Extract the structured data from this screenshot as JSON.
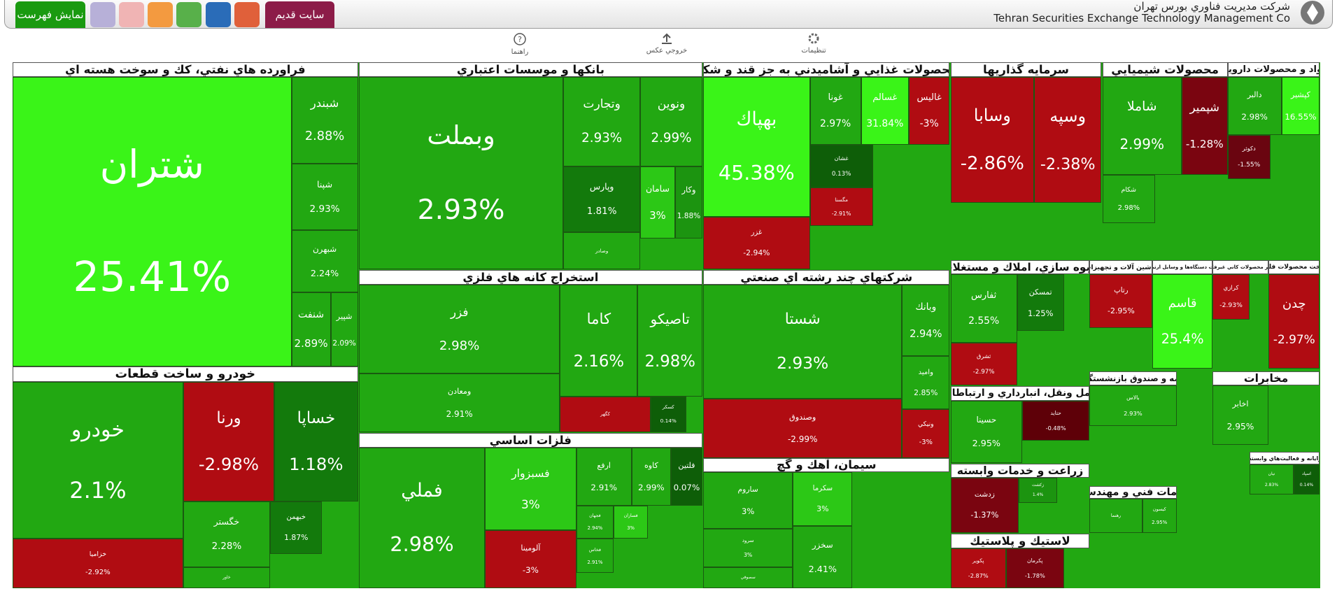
{
  "header": {
    "company_fa": "شركت مديريت فناوري بورس تهران",
    "company_en": "Tehran Securities Exchange Technology Management Co",
    "show_list": "نمايش فهرست",
    "old_site": "سايت قديم"
  },
  "toolbar": {
    "settings": "تنظيمات",
    "export": "خروجي عكس",
    "help": "راهنما"
  },
  "sectors": [
    {
      "title": "فراورده هاي نفتي، كك و سوخت هسته اي",
      "tiles": [
        {
          "name": "شتران",
          "change": "25.41%",
          "color": "#3af418"
        },
        {
          "name": "شبندر",
          "change": "2.88%",
          "color": "#22a812"
        },
        {
          "name": "شپنا",
          "change": "2.93%",
          "color": "#22a812"
        },
        {
          "name": "شبهرن",
          "change": "2.24%",
          "color": "#22a812"
        },
        {
          "name": "شنفت",
          "change": "2.89%",
          "color": "#22a812"
        },
        {
          "name": "شپير",
          "change": "2.09%",
          "color": "#22a812"
        }
      ]
    },
    {
      "title": "خودرو و ساخت قطعات",
      "tiles": [
        {
          "name": "خودرو",
          "change": "2.1%",
          "color": "#22a812"
        },
        {
          "name": "ورنا",
          "change": "-2.98%",
          "color": "#b00c12"
        },
        {
          "name": "خساپا",
          "change": "1.18%",
          "color": "#137a0c"
        },
        {
          "name": "خگستر",
          "change": "2.28%",
          "color": "#22a812"
        },
        {
          "name": "خبهمن",
          "change": "1.87%",
          "color": "#137a0c"
        },
        {
          "name": "خزاميا",
          "change": "-2.92%",
          "color": "#b00c12"
        },
        {
          "name": "خاور",
          "color": "#22a812"
        }
      ]
    },
    {
      "title": "بانكها و موسسات اعتباري",
      "tiles": [
        {
          "name": "وبملت",
          "change": "2.93%",
          "color": "#22a812"
        },
        {
          "name": "وتجارت",
          "change": "2.93%",
          "color": "#22a812"
        },
        {
          "name": "ونوين",
          "change": "2.99%",
          "color": "#22a812"
        },
        {
          "name": "وپارس",
          "change": "1.81%",
          "color": "#137a0c"
        },
        {
          "name": "وصادر",
          "color": "#22a812"
        },
        {
          "name": "سامان",
          "change": "3%",
          "color": "#2cc816"
        },
        {
          "name": "وكار",
          "change": "1.88%",
          "color": "#1c9410"
        }
      ]
    },
    {
      "title": "استخراج كانه هاي فلزي",
      "tiles": [
        {
          "name": "فزر",
          "change": "2.98%",
          "color": "#22a812"
        },
        {
          "name": "كاما",
          "change": "2.16%",
          "color": "#22a812"
        },
        {
          "name": "تاصيكو",
          "change": "2.98%",
          "color": "#22a812"
        },
        {
          "name": "ومعادن",
          "change": "2.91%",
          "color": "#22a812"
        },
        {
          "name": "كگهر",
          "color": "#b00c12"
        },
        {
          "name": "كسكر",
          "change": "0.14%",
          "color": "#0e5e08"
        }
      ]
    },
    {
      "title": "فلزات اساسي",
      "tiles": [
        {
          "name": "فملي",
          "change": "2.98%",
          "color": "#22a812"
        },
        {
          "name": "فسبزوار",
          "change": "3%",
          "color": "#2cc816"
        },
        {
          "name": "آلومينا",
          "change": "-3%",
          "color": "#b00c12"
        },
        {
          "name": "ارفع",
          "change": "2.91%",
          "color": "#22a812"
        },
        {
          "name": "كاوه",
          "change": "2.99%",
          "color": "#22a812"
        },
        {
          "name": "فلتين",
          "change": "0.07%",
          "color": "#0e5e08"
        },
        {
          "name": "فجهان",
          "change": "2.94%",
          "color": "#22a812"
        },
        {
          "name": "فسازان",
          "change": "3%",
          "color": "#2cc816"
        },
        {
          "name": "فخاس",
          "change": "2.91%",
          "color": "#22a812"
        }
      ]
    },
    {
      "title": "محصولات غذايي و آشاميدني به جز قند و شكر",
      "tiles": [
        {
          "name": "بهپاك",
          "change": "45.38%",
          "color": "#3af418"
        },
        {
          "name": "غزر",
          "change": "-2.94%",
          "color": "#b00c12"
        },
        {
          "name": "غونا",
          "change": "2.97%",
          "color": "#22a812"
        },
        {
          "name": "غسالم",
          "change": "31.84%",
          "color": "#3af418"
        },
        {
          "name": "غاليس",
          "change": "-3%",
          "color": "#b00c12"
        },
        {
          "name": "غشان",
          "change": "0.13%",
          "color": "#0e5e08"
        },
        {
          "name": "مگسنا",
          "change": "-2.91%",
          "color": "#b00c12"
        }
      ]
    },
    {
      "title": "شركتهاي چند رشته اي صنعتي",
      "tiles": [
        {
          "name": "شستا",
          "change": "2.93%",
          "color": "#22a812"
        },
        {
          "name": "وصندوق",
          "change": "-2.99%",
          "color": "#b00c12"
        },
        {
          "name": "وبانك",
          "change": "2.94%",
          "color": "#22a812"
        },
        {
          "name": "واميد",
          "change": "2.85%",
          "color": "#22a812"
        },
        {
          "name": "ونيكي",
          "change": "-3%",
          "color": "#b00c12"
        }
      ]
    },
    {
      "title": "سيمان، آهك و گچ",
      "tiles": [
        {
          "name": "ساروم",
          "change": "3%",
          "color": "#22a812"
        },
        {
          "name": "سكرما",
          "change": "3%",
          "color": "#2cc816"
        },
        {
          "name": "سرود",
          "change": "3%",
          "color": "#22a812"
        },
        {
          "name": "سخزر",
          "change": "2.41%",
          "color": "#22a812"
        },
        {
          "name": "سصوفي",
          "color": "#22a812"
        }
      ]
    },
    {
      "title": "سرمايه گذاريها",
      "tiles": [
        {
          "name": "وسابا",
          "change": "-2.86%",
          "color": "#b00c12"
        },
        {
          "name": "وسپه",
          "change": "-2.38%",
          "color": "#b00c12"
        }
      ]
    },
    {
      "title": "انبوه سازي، املاك و مستغلات",
      "tiles": [
        {
          "name": "ثفارس",
          "change": "2.55%",
          "color": "#22a812"
        },
        {
          "name": "تمسكن",
          "change": "1.25%",
          "color": "#137a0c"
        },
        {
          "name": "ثشرق",
          "change": "-2.97%",
          "color": "#b00c12"
        }
      ]
    },
    {
      "title": "حمل ونقل، انبارداري و ارتباطات",
      "tiles": [
        {
          "name": "حسينا",
          "change": "2.95%",
          "color": "#22a812"
        },
        {
          "name": "حتايد",
          "change": "-0.48%",
          "color": "#5e0008"
        }
      ]
    },
    {
      "title": "زراعت و خدمات وابسته",
      "tiles": [
        {
          "name": "زدشت",
          "change": "-1.37%",
          "color": "#7a0510"
        },
        {
          "name": "زكشت",
          "change": "1.4%",
          "color": "#1c9410"
        }
      ]
    },
    {
      "title": "لاستيك و پلاستيك",
      "tiles": [
        {
          "name": "پكوير",
          "change": "-2.87%",
          "color": "#b00c12"
        },
        {
          "name": "پكرمان",
          "change": "-1.78%",
          "color": "#7a0510"
        }
      ]
    },
    {
      "title": "محصولات شيميايي",
      "tiles": [
        {
          "name": "شاملا",
          "change": "2.99%",
          "color": "#22a812"
        },
        {
          "name": "شپمير",
          "change": "-1.28%",
          "color": "#7a0510"
        },
        {
          "name": "شكام",
          "change": "2.98%",
          "color": "#22a812"
        }
      ]
    },
    {
      "title": "مواد و محصولات دارويي",
      "tiles": [
        {
          "name": "دالبر",
          "change": "2.98%",
          "color": "#22a812"
        },
        {
          "name": "كپشير",
          "change": "16.55%",
          "color": "#3af418"
        },
        {
          "name": "دكوثر",
          "change": "-1.55%",
          "color": "#6a0510"
        }
      ]
    },
    {
      "title": "ماشين آلات و تجهيزات",
      "tiles": [
        {
          "name": "رتاپ",
          "change": "-2.95%",
          "color": "#b00c12"
        }
      ]
    },
    {
      "title": "ساخت دستگاه‌ها و وسايل ارتباطي",
      "tiles": [
        {
          "name": "قاسم",
          "change": "25.4%",
          "color": "#3af418"
        }
      ]
    },
    {
      "title": "ساير محصولات كاني غيرفلزي",
      "tiles": [
        {
          "name": "كرازي",
          "change": "-2.93%",
          "color": "#b00c12"
        }
      ]
    },
    {
      "title": "ساخت محصولات فلزي",
      "tiles": [
        {
          "name": "چدن",
          "change": "-2.97%",
          "color": "#b00c12"
        }
      ]
    },
    {
      "title": "بيمه و صندوق بازنشستگي",
      "tiles": [
        {
          "name": "بالاس",
          "change": "2.93%",
          "color": "#22a812"
        }
      ]
    },
    {
      "title": "مخابرات",
      "tiles": [
        {
          "name": "اخابر",
          "change": "2.95%",
          "color": "#22a812"
        }
      ]
    },
    {
      "title": "خدمات فني و مهندسي",
      "tiles": [
        {
          "name": "رهنما",
          "color": "#22a812"
        },
        {
          "name": "كيسون",
          "change": "2.95%",
          "color": "#22a812"
        }
      ]
    },
    {
      "title": "رايانه و فعاليت‌هاي وابسته",
      "tiles": [
        {
          "name": "نيان",
          "change": "2.83%",
          "color": "#22a812"
        },
        {
          "name": "اسپاد",
          "change": "0.14%",
          "color": "#0e5e08"
        }
      ]
    }
  ]
}
